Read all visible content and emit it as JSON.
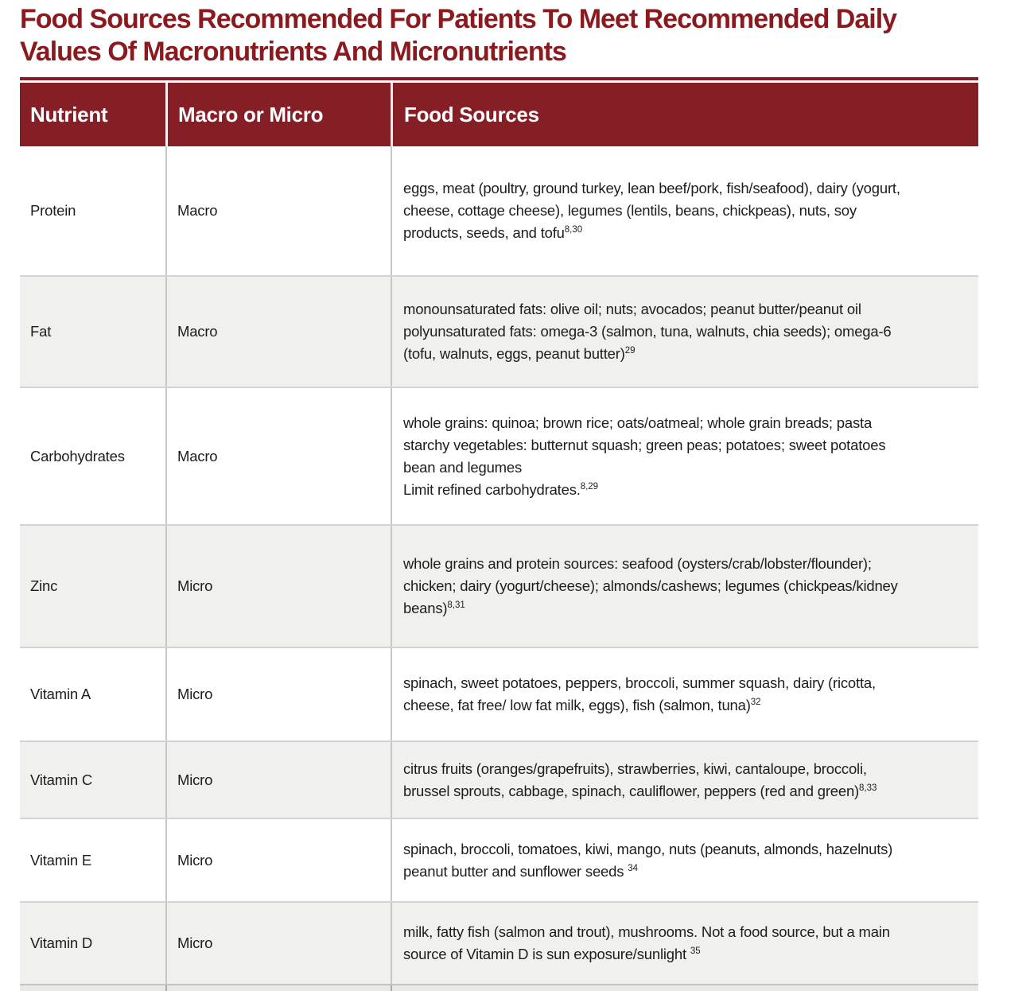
{
  "title": "Food Sources Recommended For Patients To Meet Recommended Daily\nValues Of Macronutrients And Micronutrients",
  "colors": {
    "title_maroon": "#8b1a1f",
    "header_background_maroon": "#851f25",
    "header_text": "#ffffff",
    "row_stripe_gray": "#f0f1ef",
    "body_text": "#1d1d1b"
  },
  "table": {
    "columns": [
      "Nutrient",
      "Macro or Micro",
      "Food Sources"
    ],
    "rows": [
      {
        "nutrient": "Protein",
        "category": "Macro",
        "food_lines": [
          "eggs, meat (poultry, ground turkey, lean beef/pork, fish/seafood), dairy (yogurt,",
          "cheese, cottage cheese), legumes (lentils, beans, chickpeas), nuts, soy",
          "products, seeds, and tofu"
        ],
        "ref": "8,30"
      },
      {
        "nutrient": "Fat",
        "category": "Macro",
        "food_lines": [
          "monounsaturated fats: olive oil; nuts; avocados; peanut butter/peanut oil",
          "polyunsaturated fats: omega-3 (salmon, tuna, walnuts, chia seeds); omega-6",
          "(tofu, walnuts, eggs, peanut butter)"
        ],
        "ref": "29"
      },
      {
        "nutrient": "Carbohydrates",
        "category": "Macro",
        "food_lines": [
          "whole grains: quinoa; brown rice; oats/oatmeal; whole grain breads; pasta",
          "starchy vegetables: butternut squash; green peas; potatoes; sweet potatoes",
          "bean and legumes",
          "Limit refined carbohydrates."
        ],
        "ref": "8,29"
      },
      {
        "nutrient": "Zinc",
        "category": "Micro",
        "food_lines": [
          "whole grains and protein sources: seafood (oysters/crab/lobster/flounder);",
          "chicken; dairy (yogurt/cheese); almonds/cashews; legumes (chickpeas/kidney",
          "beans)"
        ],
        "ref": "8,31"
      },
      {
        "nutrient": "Vitamin A",
        "category": "Micro",
        "food_lines": [
          "spinach, sweet potatoes, peppers, broccoli, summer squash, dairy (ricotta,",
          "cheese, fat free/ low fat milk, eggs), fish (salmon, tuna)"
        ],
        "ref": "32"
      },
      {
        "nutrient": "Vitamin C",
        "category": "Micro",
        "food_lines": [
          "citrus fruits (oranges/grapefruits), strawberries, kiwi, cantaloupe, broccoli,",
          "brussel sprouts, cabbage, spinach, cauliflower, peppers (red and green)"
        ],
        "ref": "8,33"
      },
      {
        "nutrient": "Vitamin E",
        "category": "Micro",
        "food_lines": [
          "spinach, broccoli, tomatoes, kiwi, mango, nuts (peanuts, almonds, hazelnuts)",
          "peanut butter and sunflower seeds "
        ],
        "ref": "34"
      },
      {
        "nutrient": "Vitamin D",
        "category": "Micro",
        "food_lines": [
          "milk, fatty fish (salmon and trout), mushrooms. Not a food source, but a main",
          "source of Vitamin D is sun exposure/sunlight "
        ],
        "ref": "35"
      }
    ]
  }
}
